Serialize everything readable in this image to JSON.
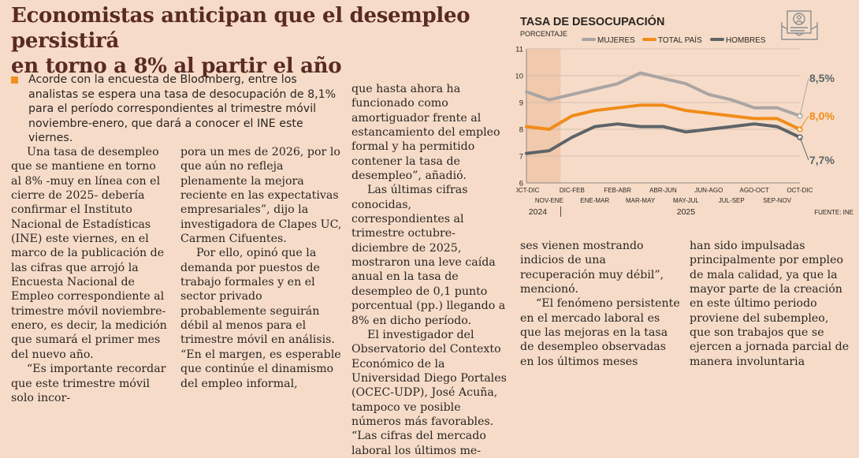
{
  "headline": {
    "line1": "Economistas anticipan que el desempleo persistirá",
    "line2": "en torno a 8% al partir el año"
  },
  "lead": "Acorde con la encuesta de Bloomberg, entre los analistas se espera una tasa de desocupación de 8,1% para el período correspondientes al trimestre móvil noviembre-enero, que dará a conocer el INE este viernes.",
  "columns": {
    "col1": [
      "Una tasa de desempleo que se mantiene en torno al 8% -muy en línea con el cierre de 2025- debería confirmar el Instituto Nacional de Estadísticas (INE) este viernes, en el marco de la publicación de las cifras que arrojó la Encuesta Nacional de Empleo correspondiente al trimestre móvil noviembre-enero, es decir, la medición que sumará el primer mes del nuevo año.",
      "“Es importante recordar que este trimestre móvil solo incor-"
    ],
    "col2": [
      "pora un mes de 2026, por lo que aún no refleja plenamente la mejora reciente en las expectativas empresariales”, dijo la investigadora de Clapes UC, Carmen Cifuentes.",
      "Por ello, opinó que la demanda por puestos de trabajo formales y en el sector privado probablemente seguirán débil al menos para el trimestre móvil en análisis. “En el margen, es esperable que continúe el dinamismo del empleo informal,"
    ],
    "col3": [
      "que hasta ahora ha funcionado como amortiguador frente al estancamiento del empleo formal y ha permitido contener la tasa de desempleo”, añadió.",
      "Las últimas cifras conocidas, correspondientes al trimestre octubre-diciembre de 2025, mostraron una leve caída anual en la tasa de desempleo de 0,1 punto porcentual (pp.) llegando a 8% en dicho período.",
      "El investigador del Observatorio del Contexto Económico de la Universidad Diego Portales (OCEC-UDP), José Acuña, tampoco ve posible números más favorables. “Las cifras del mercado laboral los últimos me-"
    ],
    "col4": [
      "ses vienen mostrando indicios de una recuperación muy débil”, mencionó.",
      "“El fenómeno persistente en el mercado laboral es que las mejoras en la tasa de desempleo observadas en los últimos meses"
    ],
    "col5": [
      "han sido impulsadas principalmente por empleo de mala calidad, ya que la mayor parte de la creación en este último periodo proviene del subempleo, que son trabajos que se ejercen a jornada parcial de manera involuntaria"
    ]
  },
  "chart_data": {
    "type": "line",
    "title": "TASA DE DESOCUPACIÓN",
    "ylabel": "PORCENTAJE",
    "source": "FUENTE: INE",
    "ylim": [
      6,
      11
    ],
    "yticks": [
      "6",
      "7",
      "8",
      "9",
      "10",
      "11"
    ],
    "categories": [
      "OCT-DIC",
      "NOV-ENE",
      "DIC-FEB",
      "ENE-MAR",
      "FEB-ABR",
      "MAR-MAY",
      "ABR-JUN",
      "MAY-JUL",
      "JUN-AGO",
      "JUL-SEP",
      "AGO-OCT",
      "SEP-NOV",
      "OCT-DIC"
    ],
    "years": [
      {
        "label": "2024",
        "from": 0,
        "to": 1
      },
      {
        "label": "2025",
        "from": 2,
        "to": 12
      }
    ],
    "series": [
      {
        "name": "MUJERES",
        "color": "#aaa5a3",
        "end_label": "8,5%",
        "values": [
          9.4,
          9.1,
          9.3,
          9.5,
          9.7,
          10.1,
          9.9,
          9.7,
          9.3,
          9.1,
          8.8,
          8.8,
          8.5
        ]
      },
      {
        "name": "TOTAL PAÍS",
        "color": "#f08c1a",
        "end_label": "8,0%",
        "values": [
          8.1,
          8.0,
          8.5,
          8.7,
          8.8,
          8.9,
          8.9,
          8.7,
          8.6,
          8.5,
          8.4,
          8.4,
          8.0
        ]
      },
      {
        "name": "HOMBRES",
        "color": "#5e6468",
        "end_label": "7,7%",
        "values": [
          7.1,
          7.2,
          7.7,
          8.1,
          8.2,
          8.1,
          8.1,
          7.9,
          8.0,
          8.1,
          8.2,
          8.1,
          7.7
        ]
      }
    ],
    "shaded_range": [
      0,
      1
    ]
  }
}
